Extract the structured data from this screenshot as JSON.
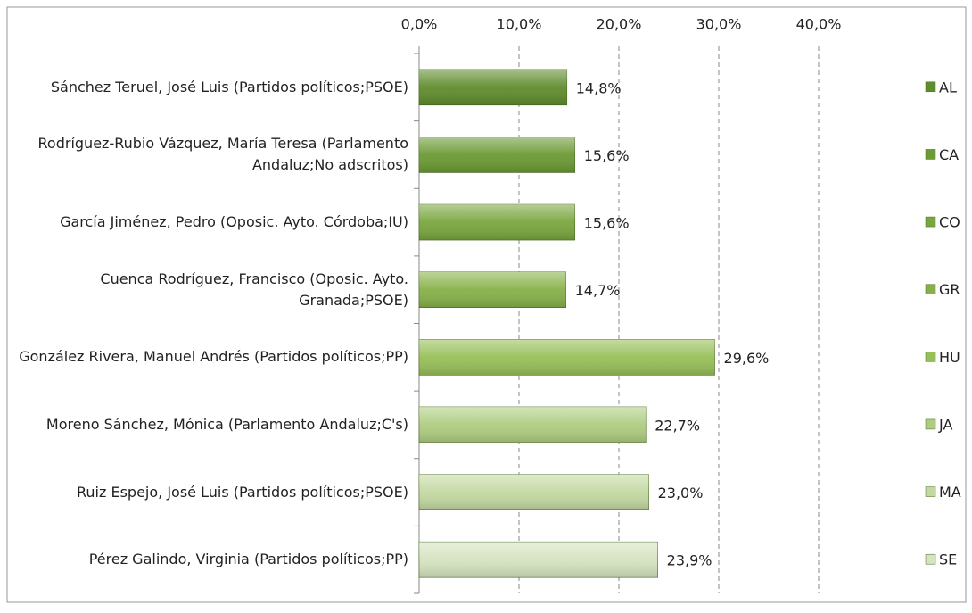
{
  "chart_data": {
    "type": "bar",
    "orientation": "horizontal",
    "categories": [
      "Sánchez Teruel, José Luis (Partidos políticos;PSOE)",
      "Rodríguez-Rubio Vázquez, María Teresa (Parlamento Andaluz;No adscritos)",
      "García Jiménez, Pedro (Oposic. Ayto. Córdoba;IU)",
      "Cuenca Rodríguez, Francisco (Oposic. Ayto. Granada;PSOE)",
      "González Rivera, Manuel Andrés (Partidos políticos;PP)",
      "Moreno Sánchez, Mónica (Parlamento Andaluz;C's)",
      "Ruiz Espejo, José Luis (Partidos políticos;PSOE)",
      "Pérez Galindo, Virginia (Partidos políticos;PP)"
    ],
    "values": [
      14.8,
      15.6,
      15.6,
      14.7,
      29.6,
      22.7,
      23.0,
      23.9
    ],
    "value_labels": [
      "14,8%",
      "15,6%",
      "15,6%",
      "14,7%",
      "29,6%",
      "22,7%",
      "23,0%",
      "23,9%"
    ],
    "colors": [
      "#5f8c2c",
      "#6c9a34",
      "#79a63e",
      "#86b148",
      "#97bf58",
      "#aecd80",
      "#c3d9a2",
      "#d5e3bf"
    ],
    "legend": [
      "AL",
      "CA",
      "CO",
      "GR",
      "HU",
      "JA",
      "MA",
      "SE"
    ],
    "xlim": [
      0,
      40
    ],
    "xticks": [
      {
        "value": 0,
        "label": "0,0%"
      },
      {
        "value": 10,
        "label": "10,0%"
      },
      {
        "value": 20,
        "label": "20,0%"
      },
      {
        "value": 30,
        "label": "30,0%"
      },
      {
        "value": 40,
        "label": "40,0%"
      }
    ],
    "grid": true
  }
}
